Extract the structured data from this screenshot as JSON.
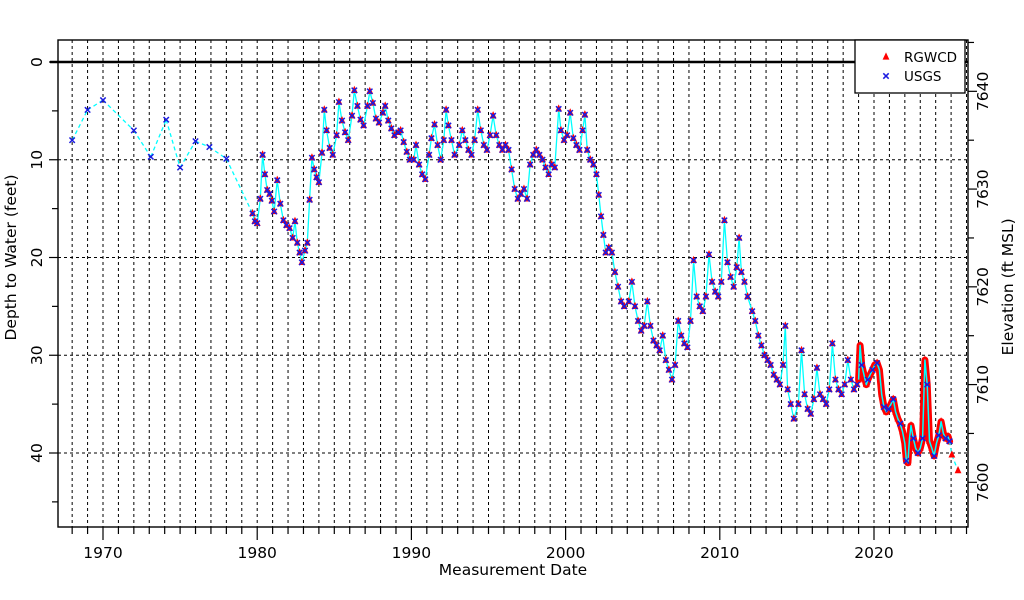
{
  "chart_data": {
    "type": "line+scatter",
    "title": "",
    "xlabel": "Measurement Date",
    "ylabel_left": "Depth to Water (feet)",
    "ylabel_right": "Elevation (ft MSL)",
    "x_tick_labels": [
      "1970",
      "1980",
      "1990",
      "2000",
      "2010",
      "2020"
    ],
    "x_ticks_major_years": [
      1970,
      1980,
      1990,
      2000,
      2010,
      2020
    ],
    "x_minor_tick_years": [
      1968,
      2026
    ],
    "x_range_years": [
      1967.1,
      2026.2
    ],
    "left_tick_labels": [
      "0",
      "10",
      "20",
      "30",
      "40"
    ],
    "depth_ticks_major": [
      0,
      10,
      20,
      30,
      40
    ],
    "depth_tick_minor_step": 5,
    "depth_minor_max": 45,
    "depth_range": [
      -2.25,
      47.6
    ],
    "right_tick_labels": [
      "7640",
      "7630",
      "7620",
      "7610",
      "7600"
    ],
    "elevation_labels": [
      7640,
      7630,
      7620,
      7610,
      7600
    ],
    "elevation_minor_step": 5,
    "elevation_minor_range": [
      7600,
      7645
    ],
    "elevation_equals": "7643 minus depth",
    "grid": {
      "vertical": "every year, dashed",
      "horizontal_depths": [
        10,
        20,
        30,
        40
      ],
      "zero_reference_line_depth": 0
    },
    "legend": {
      "position": "top-right",
      "items": [
        {
          "label": "RGWCD",
          "marker": "triangle",
          "color": "#ff0000"
        },
        {
          "label": "USGS",
          "marker": "x",
          "color": "#1a1ae0"
        }
      ]
    },
    "colors": {
      "line": "#00ffff",
      "rgwcd_marker": "#ff0000",
      "usgs_marker": "#1a1ae0",
      "axis": "#000000",
      "background": "#ffffff"
    },
    "series": {
      "usgs_early_annual": [
        [
          1968.0,
          8.0
        ],
        [
          1969.0,
          4.9
        ],
        [
          1970.0,
          3.9
        ],
        [
          1972.0,
          7.0
        ],
        [
          1973.1,
          9.7
        ],
        [
          1974.1,
          5.9
        ],
        [
          1975.0,
          10.8
        ],
        [
          1976.0,
          8.1
        ],
        [
          1976.9,
          8.7
        ],
        [
          1978.0,
          9.9
        ]
      ],
      "combined_rgwcd_usgs": [
        [
          1979.7,
          15.5
        ],
        [
          1979.85,
          16.3
        ],
        [
          1980.0,
          16.5
        ],
        [
          1980.2,
          14.0
        ],
        [
          1980.35,
          9.5
        ],
        [
          1980.5,
          11.5
        ],
        [
          1980.65,
          13.1
        ],
        [
          1980.8,
          13.5
        ],
        [
          1980.95,
          14.2
        ],
        [
          1981.1,
          15.3
        ],
        [
          1981.3,
          12.1
        ],
        [
          1981.5,
          14.5
        ],
        [
          1981.7,
          16.2
        ],
        [
          1981.9,
          16.7
        ],
        [
          1982.1,
          17.0
        ],
        [
          1982.3,
          18.0
        ],
        [
          1982.45,
          16.3
        ],
        [
          1982.6,
          18.5
        ],
        [
          1982.75,
          19.5
        ],
        [
          1982.9,
          20.5
        ],
        [
          1983.1,
          19.3
        ],
        [
          1983.25,
          18.5
        ],
        [
          1983.4,
          14.1
        ],
        [
          1983.55,
          9.8
        ],
        [
          1983.7,
          11.0
        ],
        [
          1983.85,
          11.8
        ],
        [
          1984.0,
          12.3
        ],
        [
          1984.2,
          9.3
        ],
        [
          1984.35,
          4.9
        ],
        [
          1984.5,
          7.0
        ],
        [
          1984.7,
          8.8
        ],
        [
          1984.9,
          9.5
        ],
        [
          1985.15,
          7.5
        ],
        [
          1985.3,
          4.1
        ],
        [
          1985.5,
          6.0
        ],
        [
          1985.7,
          7.2
        ],
        [
          1985.9,
          8.0
        ],
        [
          1986.15,
          5.5
        ],
        [
          1986.3,
          2.9
        ],
        [
          1986.5,
          4.5
        ],
        [
          1986.7,
          5.9
        ],
        [
          1986.9,
          6.5
        ],
        [
          1987.15,
          4.5
        ],
        [
          1987.3,
          3.0
        ],
        [
          1987.5,
          4.2
        ],
        [
          1987.7,
          5.8
        ],
        [
          1987.9,
          6.2
        ],
        [
          1988.15,
          5.2
        ],
        [
          1988.3,
          4.5
        ],
        [
          1988.5,
          6.0
        ],
        [
          1988.7,
          6.8
        ],
        [
          1988.9,
          7.5
        ],
        [
          1989.15,
          7.2
        ],
        [
          1989.3,
          7.0
        ],
        [
          1989.5,
          8.2
        ],
        [
          1989.7,
          9.2
        ],
        [
          1989.9,
          10.0
        ],
        [
          1990.15,
          10.0
        ],
        [
          1990.3,
          8.5
        ],
        [
          1990.5,
          10.5
        ],
        [
          1990.7,
          11.5
        ],
        [
          1990.9,
          12.0
        ],
        [
          1991.15,
          9.5
        ],
        [
          1991.3,
          7.8
        ],
        [
          1991.5,
          6.4
        ],
        [
          1991.7,
          8.5
        ],
        [
          1991.9,
          10.0
        ],
        [
          1992.1,
          8.0
        ],
        [
          1992.25,
          4.9
        ],
        [
          1992.4,
          6.5
        ],
        [
          1992.6,
          8.0
        ],
        [
          1992.8,
          9.5
        ],
        [
          1993.1,
          8.5
        ],
        [
          1993.3,
          7.0
        ],
        [
          1993.5,
          8.0
        ],
        [
          1993.7,
          9.0
        ],
        [
          1993.9,
          9.5
        ],
        [
          1994.1,
          8.0
        ],
        [
          1994.3,
          4.9
        ],
        [
          1994.5,
          7.0
        ],
        [
          1994.7,
          8.5
        ],
        [
          1994.9,
          9.0
        ],
        [
          1995.1,
          7.5
        ],
        [
          1995.3,
          5.5
        ],
        [
          1995.5,
          7.5
        ],
        [
          1995.7,
          8.5
        ],
        [
          1995.9,
          9.0
        ],
        [
          1996.1,
          8.5
        ],
        [
          1996.3,
          9.0
        ],
        [
          1996.5,
          11.0
        ],
        [
          1996.7,
          13.0
        ],
        [
          1996.9,
          14.0
        ],
        [
          1997.1,
          13.5
        ],
        [
          1997.3,
          13.0
        ],
        [
          1997.5,
          14.0
        ],
        [
          1997.7,
          10.5
        ],
        [
          1997.9,
          9.5
        ],
        [
          1998.1,
          9.0
        ],
        [
          1998.3,
          9.5
        ],
        [
          1998.5,
          10.0
        ],
        [
          1998.7,
          10.8
        ],
        [
          1998.9,
          11.5
        ],
        [
          1999.1,
          10.5
        ],
        [
          1999.3,
          10.8
        ],
        [
          1999.55,
          4.8
        ],
        [
          1999.7,
          7.0
        ],
        [
          1999.9,
          8.0
        ],
        [
          2000.1,
          7.5
        ],
        [
          2000.3,
          5.2
        ],
        [
          2000.5,
          7.8
        ],
        [
          2000.7,
          8.5
        ],
        [
          2000.9,
          9.0
        ],
        [
          2001.1,
          7.0
        ],
        [
          2001.25,
          5.4
        ],
        [
          2001.4,
          9.0
        ],
        [
          2001.6,
          10.0
        ],
        [
          2001.8,
          10.5
        ],
        [
          2002.0,
          11.5
        ],
        [
          2002.15,
          13.6
        ],
        [
          2002.3,
          15.8
        ],
        [
          2002.45,
          17.7
        ],
        [
          2002.6,
          19.5
        ],
        [
          2002.8,
          19.0
        ],
        [
          2003.0,
          19.5
        ],
        [
          2003.2,
          21.5
        ],
        [
          2003.4,
          23.0
        ],
        [
          2003.6,
          24.5
        ],
        [
          2003.8,
          25.0
        ],
        [
          2004.1,
          24.5
        ],
        [
          2004.3,
          22.5
        ],
        [
          2004.5,
          25.0
        ],
        [
          2004.7,
          26.5
        ],
        [
          2004.9,
          27.5
        ],
        [
          2005.1,
          27.0
        ],
        [
          2005.3,
          24.5
        ],
        [
          2005.5,
          27.0
        ],
        [
          2005.7,
          28.5
        ],
        [
          2005.9,
          29.0
        ],
        [
          2006.1,
          29.5
        ],
        [
          2006.3,
          28.0
        ],
        [
          2006.5,
          30.5
        ],
        [
          2006.7,
          31.5
        ],
        [
          2006.9,
          32.5
        ],
        [
          2007.1,
          31.0
        ],
        [
          2007.3,
          26.5
        ],
        [
          2007.5,
          28.0
        ],
        [
          2007.7,
          28.8
        ],
        [
          2007.9,
          29.2
        ],
        [
          2008.1,
          26.5
        ],
        [
          2008.3,
          20.3
        ],
        [
          2008.5,
          24.0
        ],
        [
          2008.7,
          25.0
        ],
        [
          2008.9,
          25.5
        ],
        [
          2009.1,
          24.0
        ],
        [
          2009.3,
          19.7
        ],
        [
          2009.5,
          22.5
        ],
        [
          2009.7,
          23.5
        ],
        [
          2009.9,
          24.0
        ],
        [
          2010.1,
          22.5
        ],
        [
          2010.3,
          16.2
        ],
        [
          2010.5,
          20.5
        ],
        [
          2010.7,
          22.0
        ],
        [
          2010.9,
          23.0
        ],
        [
          2011.1,
          21.0
        ],
        [
          2011.25,
          18.0
        ],
        [
          2011.4,
          21.5
        ],
        [
          2011.6,
          22.5
        ],
        [
          2011.8,
          24.0
        ],
        [
          2012.1,
          25.5
        ],
        [
          2012.3,
          26.5
        ],
        [
          2012.5,
          28.0
        ],
        [
          2012.7,
          29.0
        ],
        [
          2012.9,
          30.0
        ],
        [
          2013.1,
          30.5
        ],
        [
          2013.3,
          31.0
        ],
        [
          2013.5,
          32.0
        ],
        [
          2013.7,
          32.5
        ],
        [
          2013.9,
          33.0
        ],
        [
          2014.1,
          31.0
        ],
        [
          2014.25,
          27.0
        ],
        [
          2014.4,
          33.5
        ],
        [
          2014.6,
          35.0
        ],
        [
          2014.8,
          36.5
        ],
        [
          2015.1,
          35.0
        ],
        [
          2015.3,
          29.5
        ],
        [
          2015.5,
          34.0
        ],
        [
          2015.7,
          35.5
        ],
        [
          2015.9,
          36.0
        ],
        [
          2016.1,
          34.5
        ],
        [
          2016.3,
          31.3
        ],
        [
          2016.5,
          34.0
        ],
        [
          2016.7,
          34.5
        ],
        [
          2016.9,
          35.0
        ],
        [
          2017.1,
          33.5
        ],
        [
          2017.3,
          28.8
        ],
        [
          2017.5,
          32.5
        ],
        [
          2017.7,
          33.5
        ],
        [
          2017.9,
          34.0
        ],
        [
          2018.1,
          33.0
        ],
        [
          2018.3,
          30.5
        ],
        [
          2018.5,
          32.5
        ],
        [
          2018.7,
          33.5
        ],
        [
          2018.9,
          33.0
        ]
      ],
      "rgwcd_continuous": [
        [
          2019.0,
          32.5
        ],
        [
          2019.1,
          29.0
        ],
        [
          2019.2,
          31.0
        ],
        [
          2019.35,
          32.0
        ],
        [
          2019.5,
          33.0
        ],
        [
          2019.6,
          32.5
        ],
        [
          2019.75,
          32.0
        ],
        [
          2019.9,
          31.5
        ],
        [
          2020.05,
          31.0
        ],
        [
          2020.2,
          30.8
        ],
        [
          2020.35,
          31.5
        ],
        [
          2020.5,
          34.0
        ],
        [
          2020.65,
          35.3
        ],
        [
          2020.8,
          35.8
        ],
        [
          2020.95,
          35.5
        ],
        [
          2021.1,
          35.0
        ],
        [
          2021.25,
          34.5
        ],
        [
          2021.4,
          35.8
        ],
        [
          2021.55,
          36.5
        ],
        [
          2021.7,
          37.0
        ],
        [
          2021.85,
          37.8
        ],
        [
          2022.0,
          39.0
        ],
        [
          2022.1,
          40.8
        ],
        [
          2022.2,
          41.0
        ],
        [
          2022.3,
          38.5
        ],
        [
          2022.4,
          37.2
        ],
        [
          2022.55,
          38.5
        ],
        [
          2022.7,
          39.5
        ],
        [
          2022.85,
          40.0
        ],
        [
          2023.0,
          39.5
        ],
        [
          2023.15,
          38.5
        ],
        [
          2023.3,
          30.5
        ],
        [
          2023.45,
          33.0
        ],
        [
          2023.6,
          38.8
        ],
        [
          2023.75,
          39.5
        ],
        [
          2023.9,
          40.3
        ],
        [
          2024.05,
          39.0
        ],
        [
          2024.2,
          38.2
        ],
        [
          2024.35,
          36.8
        ],
        [
          2024.5,
          38.0
        ],
        [
          2024.65,
          38.5
        ],
        [
          2024.8,
          38.3
        ],
        [
          2024.9,
          38.8
        ]
      ],
      "usgs_checks_late": [
        [
          2019.2,
          31.0
        ],
        [
          2019.6,
          32.5
        ],
        [
          2019.9,
          31.5
        ],
        [
          2020.2,
          30.8
        ],
        [
          2020.65,
          35.3
        ],
        [
          2020.95,
          35.5
        ],
        [
          2021.25,
          34.5
        ],
        [
          2021.7,
          37.0
        ],
        [
          2022.1,
          40.8
        ],
        [
          2022.55,
          38.5
        ],
        [
          2022.85,
          40.0
        ],
        [
          2023.15,
          38.5
        ],
        [
          2023.45,
          33.0
        ],
        [
          2023.9,
          40.3
        ],
        [
          2024.2,
          38.2
        ],
        [
          2024.65,
          38.5
        ],
        [
          2024.9,
          38.8
        ]
      ],
      "rgwcd_tail": [
        [
          2025.05,
          40.2
        ],
        [
          2025.45,
          41.8
        ]
      ]
    }
  }
}
